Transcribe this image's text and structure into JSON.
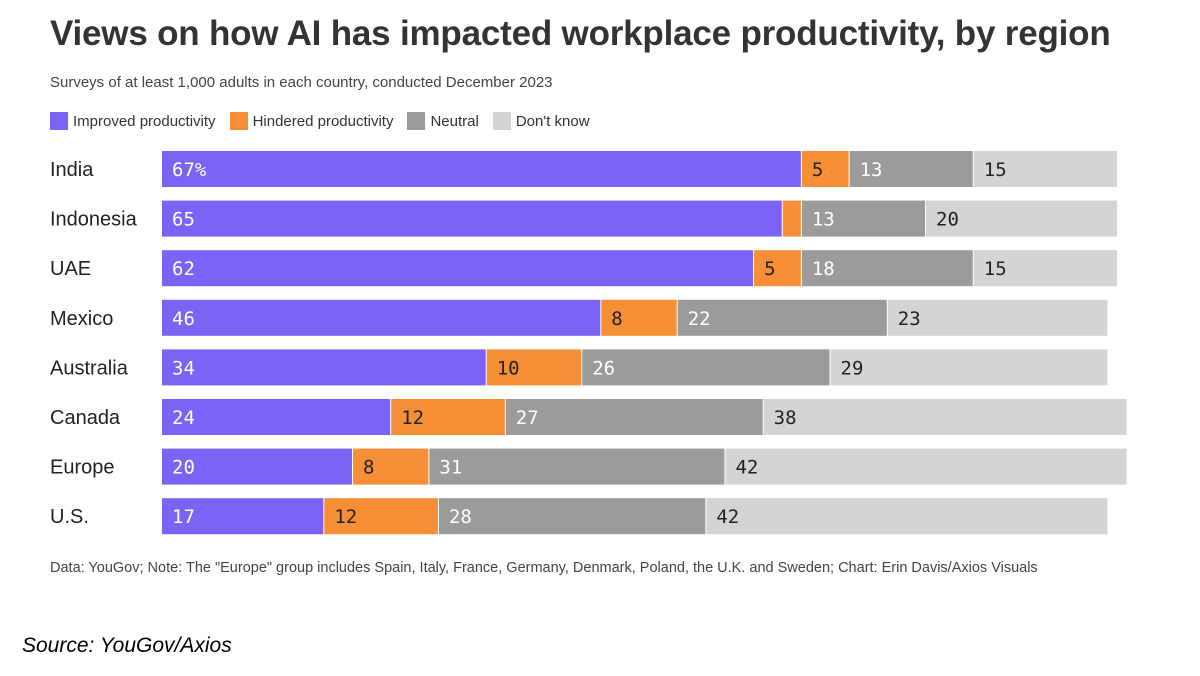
{
  "header": {
    "title": "Views on how AI has impacted workplace productivity, by region",
    "subtitle": "Surveys of at least 1,000 adults in each country, conducted December 2023"
  },
  "chart_data": {
    "type": "bar",
    "orientation": "horizontal",
    "stacked": true,
    "categories": [
      "India",
      "Indonesia",
      "UAE",
      "Mexico",
      "Australia",
      "Canada",
      "Europe",
      "U.S."
    ],
    "series": [
      {
        "name": "Improved productivity",
        "color": "#7B63F5",
        "label_color": "#ffffff",
        "values": [
          67,
          65,
          62,
          46,
          34,
          24,
          20,
          17
        ],
        "labels": [
          "67%",
          "65",
          "62",
          "46",
          "34",
          "24",
          "20",
          "17"
        ]
      },
      {
        "name": "Hindered productivity",
        "color": "#F68F35",
        "label_color": "#222222",
        "values": [
          5,
          2,
          5,
          8,
          10,
          12,
          8,
          12
        ],
        "labels": [
          "5",
          "",
          "5",
          "8",
          "10",
          "12",
          "8",
          "12"
        ]
      },
      {
        "name": "Neutral",
        "color": "#9B9B9B",
        "label_color": "#ffffff",
        "values": [
          13,
          13,
          18,
          22,
          26,
          27,
          31,
          28
        ],
        "labels": [
          "13",
          "13",
          "18",
          "22",
          "26",
          "27",
          "31",
          "28"
        ]
      },
      {
        "name": "Don't know",
        "color": "#D4D4D4",
        "label_color": "#222222",
        "values": [
          15,
          20,
          15,
          23,
          29,
          38,
          42,
          42
        ],
        "labels": [
          "15",
          "20",
          "15",
          "23",
          "29",
          "38",
          "42",
          "42"
        ]
      }
    ],
    "legend_position": "top-left",
    "grid": false
  },
  "footer": {
    "note": "Data: YouGov; Note: The \"Europe\" group includes Spain, Italy, France, Germany, Denmark, Poland, the U.K. and Sweden; Chart: Erin Davis/Axios Visuals",
    "source": "Source: YouGov/Axios"
  }
}
